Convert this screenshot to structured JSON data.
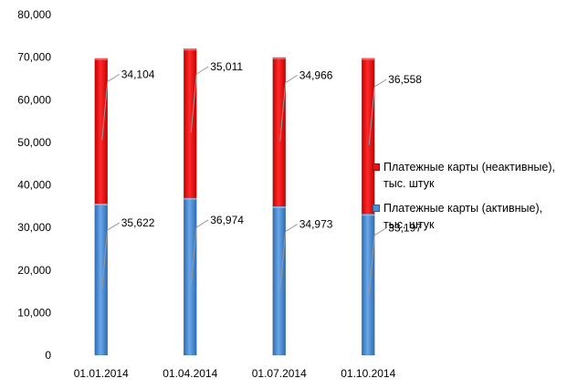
{
  "chart_data": {
    "type": "bar",
    "stacked": true,
    "categories": [
      "01.01.2014",
      "01.04.2014",
      "01.07.2014",
      "01.10.2014"
    ],
    "series": [
      {
        "name": "Платежные карты (активные), тыс. штук",
        "values": [
          35622,
          36974,
          34973,
          33197
        ],
        "labels": [
          "35,622",
          "36,974",
          "34,973",
          "33,197"
        ],
        "color": "#4f8fd6"
      },
      {
        "name": "Платежные карты (неактивные), тыс. штук",
        "values": [
          34104,
          35011,
          34966,
          36558
        ],
        "labels": [
          "34,104",
          "35,011",
          "34,966",
          "36,558"
        ],
        "color": "#ee1111"
      }
    ],
    "ylim": [
      0,
      80000
    ],
    "yticks": [
      0,
      10000,
      20000,
      30000,
      40000,
      50000,
      60000,
      70000,
      80000
    ],
    "ytick_labels": [
      "0",
      "10,000",
      "20,000",
      "30,000",
      "40,000",
      "50,000",
      "60,000",
      "70,000",
      "80,000"
    ],
    "grid": false,
    "legend_position": "right"
  }
}
